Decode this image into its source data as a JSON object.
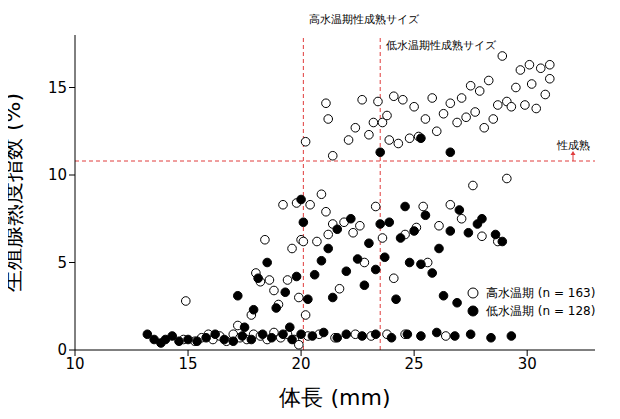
{
  "chart_data": {
    "type": "scatter",
    "x_label": "体長 (mm)",
    "y_label": "生殖腺熟度指数 (%)",
    "xlim": [
      10,
      33
    ],
    "xticks": [
      10,
      15,
      20,
      25,
      30
    ],
    "ylim": [
      0,
      18
    ],
    "yticks": [
      0,
      5,
      10,
      15
    ],
    "grid": false,
    "legend": "bottom-right",
    "reference_lines": [
      {
        "axis": "x",
        "value": 20.1,
        "label": "高水温期性成熟サイズ",
        "color": "#e03c3c",
        "line_style": "dashed"
      },
      {
        "axis": "x",
        "value": 23.5,
        "label": "低水温期性成熟サイズ",
        "color": "#e03c3c",
        "line_style": "dashed"
      },
      {
        "axis": "y",
        "value": 10.8,
        "label": "性成熟",
        "color": "#e03c3c",
        "line_style": "dashed"
      }
    ],
    "series": [
      {
        "name": "高水温期 (n = 163)",
        "color": "#000000",
        "marker": "open_circle",
        "x": [
          14.8,
          15.3,
          15.6,
          15.9,
          16.1,
          16.4,
          16.7,
          17.0,
          17.3,
          17.6,
          17.9,
          18.2,
          18.5,
          18.8,
          19.1,
          19.4,
          19.7,
          19.9,
          20.3,
          20.8,
          21.5,
          22.4,
          23.1,
          23.8,
          24.6,
          26.4,
          14.9,
          17.2,
          17.8,
          18.0,
          18.2,
          18.4,
          18.6,
          18.8,
          19.0,
          19.2,
          19.4,
          19.6,
          19.8,
          19.9,
          20.0,
          20.1,
          20.2,
          20.4,
          20.7,
          20.9,
          21.1,
          21.2,
          21.4,
          21.7,
          21.9,
          22.3,
          22.6,
          22.8,
          23.3,
          23.6,
          24.1,
          24.6,
          25.1,
          25.4,
          25.6,
          26.1,
          26.6,
          27.1,
          27.6,
          28.0,
          29.1,
          28.7,
          20.2,
          21.1,
          21.2,
          21.4,
          22.1,
          22.4,
          22.7,
          23.0,
          23.2,
          23.4,
          23.6,
          23.8,
          23.9,
          24.1,
          24.3,
          24.5,
          24.8,
          25.0,
          25.2,
          25.5,
          25.8,
          26.0,
          26.3,
          26.6,
          26.9,
          27.1,
          27.3,
          27.5,
          27.7,
          27.9,
          28.1,
          28.3,
          28.5,
          28.7,
          28.9,
          29.1,
          29.3,
          29.5,
          29.7,
          29.9,
          30.1,
          30.2,
          30.4,
          30.6,
          30.8,
          31.0,
          31.0
        ],
        "values": [
          0.6,
          0.5,
          0.7,
          0.9,
          0.6,
          0.8,
          0.5,
          0.9,
          0.7,
          0.6,
          0.9,
          0.8,
          0.6,
          1.0,
          0.7,
          0.9,
          0.6,
          0.3,
          0.8,
          0.9,
          0.7,
          0.9,
          0.8,
          0.9,
          0.9,
          0.8,
          2.8,
          1.4,
          2.0,
          4.4,
          3.9,
          6.3,
          4.0,
          3.4,
          2.6,
          8.3,
          4.0,
          5.8,
          8.4,
          3.0,
          6.3,
          6.2,
          2.0,
          8.3,
          6.2,
          8.9,
          7.9,
          6.6,
          7.2,
          3.5,
          7.3,
          6.7,
          7.1,
          5.0,
          8.2,
          6.4,
          4.1,
          6.6,
          7.0,
          8.2,
          5.0,
          7.1,
          8.3,
          7.5,
          9.4,
          6.5,
          9.8,
          6.2,
          11.9,
          14.1,
          13.2,
          11.1,
          12.0,
          12.7,
          14.3,
          12.3,
          13.0,
          14.2,
          13.0,
          13.4,
          12.0,
          14.5,
          11.8,
          14.3,
          12.1,
          13.9,
          12.2,
          13.2,
          14.4,
          12.5,
          13.5,
          14.1,
          13.0,
          14.4,
          13.3,
          15.1,
          13.6,
          14.8,
          12.7,
          15.4,
          13.2,
          14.0,
          16.8,
          14.2,
          13.9,
          15.0,
          16.0,
          14.0,
          16.3,
          15.2,
          13.8,
          16.1,
          14.6,
          16.3,
          15.5
        ]
      },
      {
        "name": "低水温期 (n = 128)",
        "color": "#000000",
        "marker": "filled_circle",
        "x": [
          13.2,
          13.5,
          13.8,
          14.0,
          14.3,
          14.6,
          15.0,
          15.4,
          15.8,
          16.2,
          16.6,
          17.0,
          17.4,
          17.8,
          18.3,
          18.7,
          19.2,
          19.6,
          20.0,
          20.5,
          21.0,
          21.6,
          22.0,
          22.7,
          23.3,
          24.0,
          24.7,
          25.3,
          26.0,
          26.8,
          27.5,
          28.4,
          29.3,
          17.2,
          17.5,
          17.9,
          18.1,
          18.5,
          18.9,
          19.3,
          19.5,
          19.8,
          20.0,
          20.1,
          20.3,
          20.6,
          20.9,
          21.2,
          21.4,
          21.6,
          22.0,
          22.2,
          22.5,
          22.8,
          23.0,
          23.3,
          23.5,
          23.7,
          23.9,
          24.2,
          24.4,
          24.6,
          24.8,
          25.0,
          25.3,
          25.5,
          25.8,
          26.1,
          26.3,
          26.6,
          27.0,
          27.4,
          27.8,
          28.0,
          28.6,
          28.9,
          26.9,
          23.5,
          25.3,
          26.6
        ],
        "values": [
          0.9,
          0.6,
          0.4,
          0.6,
          0.8,
          0.5,
          0.6,
          0.5,
          0.7,
          0.9,
          0.6,
          0.5,
          0.8,
          0.6,
          0.9,
          0.7,
          0.9,
          0.6,
          0.9,
          0.8,
          1.0,
          0.7,
          0.9,
          0.8,
          0.9,
          0.7,
          0.9,
          0.8,
          1.0,
          0.8,
          0.9,
          0.7,
          0.8,
          3.1,
          1.3,
          2.3,
          4.1,
          5.0,
          2.4,
          3.3,
          1.3,
          4.2,
          8.6,
          7.3,
          2.9,
          4.3,
          5.1,
          5.8,
          3.0,
          6.9,
          4.5,
          7.5,
          5.2,
          3.7,
          6.1,
          4.6,
          7.2,
          5.3,
          7.3,
          2.9,
          6.4,
          8.2,
          5.0,
          6.8,
          4.9,
          7.7,
          4.4,
          5.8,
          3.1,
          6.8,
          8.0,
          6.7,
          7.2,
          7.5,
          6.6,
          6.2,
          2.7,
          11.3,
          12.1,
          11.3
        ]
      }
    ]
  }
}
